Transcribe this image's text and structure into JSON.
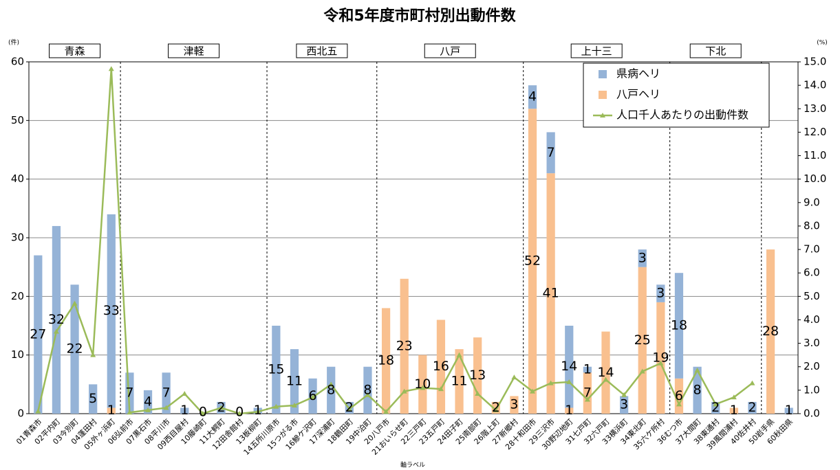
{
  "chart_data": {
    "type": "bar",
    "stacked": true,
    "title": "令和5年度市町村別出動件数",
    "y_unit": "(件)",
    "y2_unit": "(%)",
    "x_label": "軸ラベル",
    "groups": [
      "青森",
      "津軽",
      "西北五",
      "八戸",
      "上十三",
      "下北"
    ],
    "categories": [
      "01青森市",
      "02平内町",
      "03今別町",
      "04蓬田村",
      "05外ヶ浜町",
      "06弘前市",
      "07黒石市",
      "08平川市",
      "09西目屋村",
      "10藤崎町",
      "11大鰐町",
      "12田舎館村",
      "13板柳町",
      "14五所川原市",
      "15つがる市",
      "16鰺ケ沢町",
      "17深浦町",
      "18鶴田町",
      "19中泊町",
      "20八戸市",
      "21おいらせ町",
      "22三戸町",
      "23五戸町",
      "24田子町",
      "25南部町",
      "26階上町",
      "27新郷村",
      "28十和田市",
      "29三沢市",
      "30野辺地町",
      "31七戸町",
      "32六戸町",
      "33横浜町",
      "34東北町",
      "35六ケ所村",
      "36むつ市",
      "37大間町",
      "38東通村",
      "39風間浦村",
      "40佐井村",
      "50岩手県",
      "60秋田県"
    ],
    "series": [
      {
        "name": "八戸ヘリ",
        "color": "#f9c08f",
        "values": [
          null,
          null,
          null,
          null,
          1,
          null,
          null,
          null,
          null,
          null,
          null,
          null,
          null,
          null,
          null,
          null,
          null,
          null,
          null,
          18,
          23,
          10,
          16,
          11,
          13,
          2,
          3,
          52,
          41,
          1,
          7,
          14,
          null,
          25,
          19,
          6,
          null,
          null,
          1,
          null,
          28,
          null
        ]
      },
      {
        "name": "県病ヘリ",
        "color": "#95b3d7",
        "values": [
          27,
          32,
          22,
          5,
          33,
          7,
          4,
          7,
          1,
          0,
          2,
          0,
          1,
          15,
          11,
          6,
          8,
          2,
          8,
          null,
          null,
          null,
          null,
          null,
          null,
          null,
          null,
          4,
          7,
          14,
          1,
          null,
          3,
          3,
          3,
          18,
          8,
          2,
          null,
          2,
          null,
          1
        ]
      },
      {
        "name": "人口千人あたりの出動件数",
        "color": "#9bbb59",
        "type": "line",
        "axis": "y2",
        "values": [
          0.1,
          3.5,
          4.7,
          2.5,
          14.7,
          0.05,
          0.15,
          0.25,
          0.85,
          0,
          0.25,
          0,
          0.08,
          0.3,
          0.35,
          0.7,
          1.25,
          0.2,
          0.8,
          0.08,
          0.95,
          1.1,
          1.05,
          2.5,
          0.85,
          0.15,
          1.55,
          0.95,
          1.3,
          1.35,
          0.6,
          1.45,
          0.8,
          1.8,
          2.15,
          0.4,
          1.85,
          0.4,
          0.7,
          1.3,
          null,
          null
        ]
      }
    ],
    "ylim": [
      0,
      60
    ],
    "yticks": [
      0,
      10,
      20,
      30,
      40,
      50,
      60
    ],
    "y2lim": [
      0,
      15
    ],
    "y2ticks": [
      {
        "value": 0,
        "label": "0.0"
      },
      {
        "value": 1,
        "label": "1.0"
      },
      {
        "value": 2,
        "label": "2.0"
      },
      {
        "value": 3,
        "label": "3.0"
      },
      {
        "value": 4,
        "label": "4.0"
      },
      {
        "value": 5,
        "label": "5.0"
      },
      {
        "value": 6,
        "label": "6.0"
      },
      {
        "value": 7,
        "label": "7.0"
      },
      {
        "value": 8,
        "label": "8.0"
      },
      {
        "value": 9,
        "label": "9.0"
      },
      {
        "value": 10,
        "label": "10.0"
      },
      {
        "value": 11,
        "label": "11.0"
      },
      {
        "value": 12,
        "label": "12.0"
      },
      {
        "value": 13,
        "label": "13.0"
      },
      {
        "value": 14,
        "label": "14.0"
      },
      {
        "value": 15,
        "label": "15.0"
      }
    ],
    "grid": true,
    "legend": "top-right"
  }
}
